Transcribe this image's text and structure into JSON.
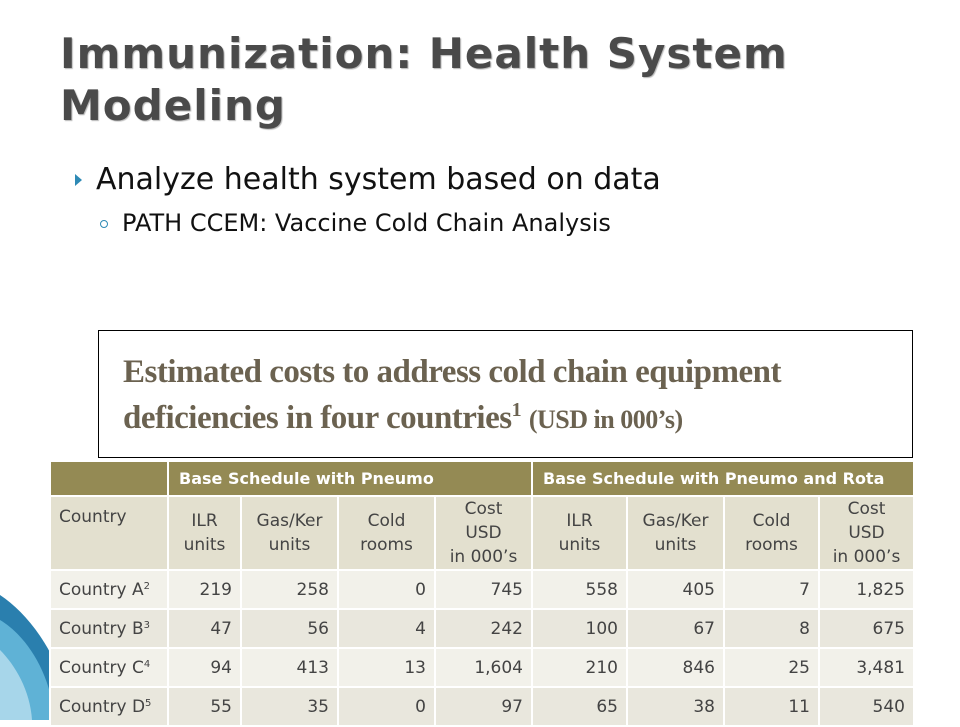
{
  "slide": {
    "title": "Immunization: Health System Modeling",
    "bullet": "Analyze health system based on data",
    "sub_bullet": "PATH CCEM: Vaccine Cold Chain Analysis"
  },
  "caption": {
    "line1": "Estimated costs to address cold chain equipment",
    "line2": "deficiencies in four countries",
    "sup": "1",
    "units": "(USD in 000’s)"
  },
  "table": {
    "groups": [
      "",
      "Base Schedule with Pneumo",
      "Base Schedule with Pneumo and Rota"
    ],
    "columns": [
      [
        "Country"
      ],
      [
        "ILR",
        "units"
      ],
      [
        "Gas/Ker",
        "units"
      ],
      [
        "Cold",
        "rooms"
      ],
      [
        "Cost USD",
        "in 000’s"
      ],
      [
        "ILR",
        "units"
      ],
      [
        "Gas/Ker",
        "units"
      ],
      [
        "Cold",
        "rooms"
      ],
      [
        "Cost USD",
        "in 000’s"
      ]
    ],
    "rows": [
      {
        "country": "Country A",
        "sup": "2",
        "values": [
          "219",
          "258",
          "0",
          "745",
          "558",
          "405",
          "7",
          "1,825"
        ]
      },
      {
        "country": "Country B",
        "sup": "3",
        "values": [
          "47",
          "56",
          "4",
          "242",
          "100",
          "67",
          "8",
          "675"
        ]
      },
      {
        "country": "Country C",
        "sup": "4",
        "values": [
          "94",
          "413",
          "13",
          "1,604",
          "210",
          "846",
          "25",
          "3,481"
        ]
      },
      {
        "country": "Country D",
        "sup": "5",
        "values": [
          "55",
          "35",
          "0",
          "97",
          "65",
          "38",
          "11",
          "540"
        ]
      }
    ]
  },
  "colors": {
    "header_band": "#948a54",
    "column_header": "#e3e0cf",
    "row_light": "#f2f1ea",
    "row_dark": "#e9e7dd",
    "bullet_accent": "#2e8ab5",
    "caption_text": "#6b6250"
  },
  "icons": {
    "bullet": "triangle-arrow-icon",
    "sub_bullet": "ring-bullet-icon"
  }
}
